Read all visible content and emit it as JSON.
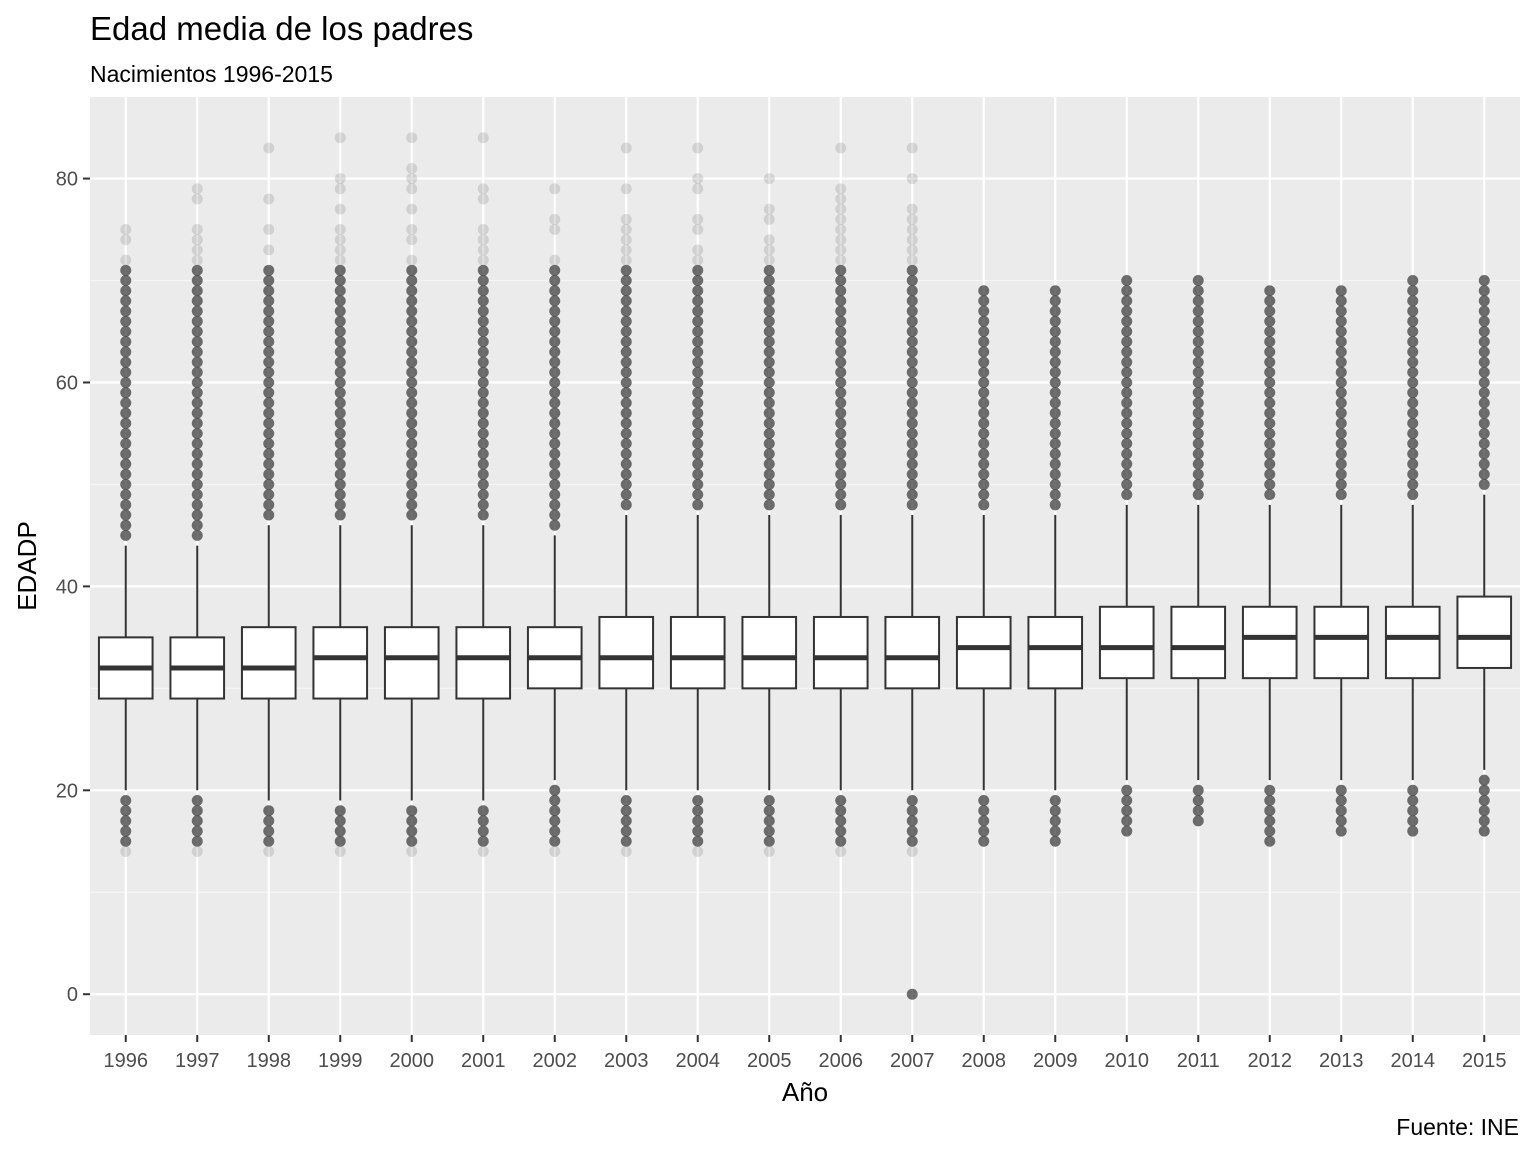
{
  "chart_data": {
    "type": "boxplot",
    "title": "Edad media de los padres",
    "subtitle": "Nacimientos 1996-2015",
    "xlabel": "Año",
    "ylabel": "EDADP",
    "caption": "Fuente: INE",
    "ylim": [
      -4,
      88
    ],
    "yticks": [
      0,
      20,
      40,
      60,
      80
    ],
    "grid": true,
    "categories": [
      "1996",
      "1997",
      "1998",
      "1999",
      "2000",
      "2001",
      "2002",
      "2003",
      "2004",
      "2005",
      "2006",
      "2007",
      "2008",
      "2009",
      "2010",
      "2011",
      "2012",
      "2013",
      "2014",
      "2015"
    ],
    "boxes": [
      {
        "x": "1996",
        "q1": 29,
        "median": 32,
        "q3": 35,
        "whisker_low": 20,
        "whisker_high": 44,
        "outliers_low": [
          14,
          15,
          16,
          17,
          18,
          19
        ],
        "outliers_high": [
          45,
          46,
          47,
          48,
          49,
          50,
          51,
          52,
          53,
          54,
          55,
          56,
          57,
          58,
          59,
          60,
          61,
          62,
          63,
          64,
          65,
          66,
          67,
          68,
          69,
          70,
          71,
          72,
          74,
          75
        ]
      },
      {
        "x": "1997",
        "q1": 29,
        "median": 32,
        "q3": 35,
        "whisker_low": 20,
        "whisker_high": 44,
        "outliers_low": [
          14,
          15,
          16,
          17,
          18,
          19
        ],
        "outliers_high": [
          45,
          46,
          47,
          48,
          49,
          50,
          51,
          52,
          53,
          54,
          55,
          56,
          57,
          58,
          59,
          60,
          61,
          62,
          63,
          64,
          65,
          66,
          67,
          68,
          69,
          70,
          71,
          72,
          73,
          74,
          75,
          78,
          79
        ]
      },
      {
        "x": "1998",
        "q1": 29,
        "median": 32,
        "q3": 36,
        "whisker_low": 19,
        "whisker_high": 46,
        "outliers_low": [
          14,
          15,
          16,
          17,
          18
        ],
        "outliers_high": [
          47,
          48,
          49,
          50,
          51,
          52,
          53,
          54,
          55,
          56,
          57,
          58,
          59,
          60,
          61,
          62,
          63,
          64,
          65,
          66,
          67,
          68,
          69,
          70,
          71,
          73,
          75,
          78,
          83
        ]
      },
      {
        "x": "1999",
        "q1": 29,
        "median": 33,
        "q3": 36,
        "whisker_low": 19,
        "whisker_high": 46,
        "outliers_low": [
          14,
          15,
          16,
          17,
          18
        ],
        "outliers_high": [
          47,
          48,
          49,
          50,
          51,
          52,
          53,
          54,
          55,
          56,
          57,
          58,
          59,
          60,
          61,
          62,
          63,
          64,
          65,
          66,
          67,
          68,
          69,
          70,
          71,
          72,
          73,
          74,
          75,
          77,
          79,
          80,
          84
        ]
      },
      {
        "x": "2000",
        "q1": 29,
        "median": 33,
        "q3": 36,
        "whisker_low": 19,
        "whisker_high": 46,
        "outliers_low": [
          14,
          15,
          16,
          17,
          18
        ],
        "outliers_high": [
          47,
          48,
          49,
          50,
          51,
          52,
          53,
          54,
          55,
          56,
          57,
          58,
          59,
          60,
          61,
          62,
          63,
          64,
          65,
          66,
          67,
          68,
          69,
          70,
          71,
          72,
          74,
          75,
          77,
          79,
          80,
          81,
          84
        ]
      },
      {
        "x": "2001",
        "q1": 29,
        "median": 33,
        "q3": 36,
        "whisker_low": 19,
        "whisker_high": 46,
        "outliers_low": [
          14,
          15,
          16,
          17,
          18
        ],
        "outliers_high": [
          47,
          48,
          49,
          50,
          51,
          52,
          53,
          54,
          55,
          56,
          57,
          58,
          59,
          60,
          61,
          62,
          63,
          64,
          65,
          66,
          67,
          68,
          69,
          70,
          71,
          72,
          73,
          74,
          75,
          78,
          79,
          84
        ]
      },
      {
        "x": "2002",
        "q1": 30,
        "median": 33,
        "q3": 36,
        "whisker_low": 21,
        "whisker_high": 45,
        "outliers_low": [
          14,
          15,
          16,
          17,
          18,
          19,
          20
        ],
        "outliers_high": [
          46,
          47,
          48,
          49,
          50,
          51,
          52,
          53,
          54,
          55,
          56,
          57,
          58,
          59,
          60,
          61,
          62,
          63,
          64,
          65,
          66,
          67,
          68,
          69,
          70,
          71,
          72,
          75,
          76,
          79
        ]
      },
      {
        "x": "2003",
        "q1": 30,
        "median": 33,
        "q3": 37,
        "whisker_low": 20,
        "whisker_high": 47,
        "outliers_low": [
          14,
          15,
          16,
          17,
          18,
          19
        ],
        "outliers_high": [
          48,
          49,
          50,
          51,
          52,
          53,
          54,
          55,
          56,
          57,
          58,
          59,
          60,
          61,
          62,
          63,
          64,
          65,
          66,
          67,
          68,
          69,
          70,
          71,
          72,
          73,
          74,
          75,
          76,
          79,
          83
        ]
      },
      {
        "x": "2004",
        "q1": 30,
        "median": 33,
        "q3": 37,
        "whisker_low": 20,
        "whisker_high": 47,
        "outliers_low": [
          14,
          15,
          16,
          17,
          18,
          19
        ],
        "outliers_high": [
          48,
          49,
          50,
          51,
          52,
          53,
          54,
          55,
          56,
          57,
          58,
          59,
          60,
          61,
          62,
          63,
          64,
          65,
          66,
          67,
          68,
          69,
          70,
          71,
          72,
          73,
          75,
          76,
          79,
          80,
          83
        ]
      },
      {
        "x": "2005",
        "q1": 30,
        "median": 33,
        "q3": 37,
        "whisker_low": 20,
        "whisker_high": 47,
        "outliers_low": [
          14,
          15,
          16,
          17,
          18,
          19
        ],
        "outliers_high": [
          48,
          49,
          50,
          51,
          52,
          53,
          54,
          55,
          56,
          57,
          58,
          59,
          60,
          61,
          62,
          63,
          64,
          65,
          66,
          67,
          68,
          69,
          70,
          71,
          72,
          73,
          74,
          76,
          77,
          80
        ]
      },
      {
        "x": "2006",
        "q1": 30,
        "median": 33,
        "q3": 37,
        "whisker_low": 20,
        "whisker_high": 47,
        "outliers_low": [
          14,
          15,
          16,
          17,
          18,
          19
        ],
        "outliers_high": [
          48,
          49,
          50,
          51,
          52,
          53,
          54,
          55,
          56,
          57,
          58,
          59,
          60,
          61,
          62,
          63,
          64,
          65,
          66,
          67,
          68,
          69,
          70,
          71,
          72,
          73,
          74,
          75,
          76,
          77,
          78,
          79,
          83
        ]
      },
      {
        "x": "2007",
        "q1": 30,
        "median": 33,
        "q3": 37,
        "whisker_low": 20,
        "whisker_high": 47,
        "outliers_low": [
          0,
          14,
          15,
          16,
          17,
          18,
          19
        ],
        "outliers_high": [
          48,
          49,
          50,
          51,
          52,
          53,
          54,
          55,
          56,
          57,
          58,
          59,
          60,
          61,
          62,
          63,
          64,
          65,
          66,
          67,
          68,
          69,
          70,
          71,
          72,
          73,
          74,
          75,
          76,
          77,
          80,
          83
        ]
      },
      {
        "x": "2008",
        "q1": 30,
        "median": 34,
        "q3": 37,
        "whisker_low": 20,
        "whisker_high": 47,
        "outliers_low": [
          15,
          16,
          17,
          18,
          19
        ],
        "outliers_high": [
          48,
          49,
          50,
          51,
          52,
          53,
          54,
          55,
          56,
          57,
          58,
          59,
          60,
          61,
          62,
          63,
          64,
          65,
          66,
          67,
          68,
          69
        ]
      },
      {
        "x": "2009",
        "q1": 30,
        "median": 34,
        "q3": 37,
        "whisker_low": 20,
        "whisker_high": 47,
        "outliers_low": [
          15,
          16,
          17,
          18,
          19
        ],
        "outliers_high": [
          48,
          49,
          50,
          51,
          52,
          53,
          54,
          55,
          56,
          57,
          58,
          59,
          60,
          61,
          62,
          63,
          64,
          65,
          66,
          67,
          68,
          69
        ]
      },
      {
        "x": "2010",
        "q1": 31,
        "median": 34,
        "q3": 38,
        "whisker_low": 21,
        "whisker_high": 48,
        "outliers_low": [
          16,
          17,
          18,
          19,
          20
        ],
        "outliers_high": [
          49,
          50,
          51,
          52,
          53,
          54,
          55,
          56,
          57,
          58,
          59,
          60,
          61,
          62,
          63,
          64,
          65,
          66,
          67,
          68,
          69,
          70
        ]
      },
      {
        "x": "2011",
        "q1": 31,
        "median": 34,
        "q3": 38,
        "whisker_low": 21,
        "whisker_high": 48,
        "outliers_low": [
          17,
          18,
          19,
          20
        ],
        "outliers_high": [
          49,
          50,
          51,
          52,
          53,
          54,
          55,
          56,
          57,
          58,
          59,
          60,
          61,
          62,
          63,
          64,
          65,
          66,
          67,
          68,
          69,
          70
        ]
      },
      {
        "x": "2012",
        "q1": 31,
        "median": 35,
        "q3": 38,
        "whisker_low": 21,
        "whisker_high": 48,
        "outliers_low": [
          15,
          16,
          17,
          18,
          19,
          20
        ],
        "outliers_high": [
          49,
          50,
          51,
          52,
          53,
          54,
          55,
          56,
          57,
          58,
          59,
          60,
          61,
          62,
          63,
          64,
          65,
          66,
          67,
          68,
          69
        ]
      },
      {
        "x": "2013",
        "q1": 31,
        "median": 35,
        "q3": 38,
        "whisker_low": 21,
        "whisker_high": 48,
        "outliers_low": [
          16,
          17,
          18,
          19,
          20
        ],
        "outliers_high": [
          49,
          50,
          51,
          52,
          53,
          54,
          55,
          56,
          57,
          58,
          59,
          60,
          61,
          62,
          63,
          64,
          65,
          66,
          67,
          68,
          69
        ]
      },
      {
        "x": "2014",
        "q1": 31,
        "median": 35,
        "q3": 38,
        "whisker_low": 21,
        "whisker_high": 48,
        "outliers_low": [
          16,
          17,
          18,
          19,
          20
        ],
        "outliers_high": [
          49,
          50,
          51,
          52,
          53,
          54,
          55,
          56,
          57,
          58,
          59,
          60,
          61,
          62,
          63,
          64,
          65,
          66,
          67,
          68,
          69,
          70
        ]
      },
      {
        "x": "2015",
        "q1": 32,
        "median": 35,
        "q3": 39,
        "whisker_low": 22,
        "whisker_high": 49,
        "outliers_low": [
          16,
          17,
          18,
          19,
          20,
          21
        ],
        "outliers_high": [
          50,
          51,
          52,
          53,
          54,
          55,
          56,
          57,
          58,
          59,
          60,
          61,
          62,
          63,
          64,
          65,
          66,
          67,
          68,
          69,
          70
        ]
      }
    ]
  },
  "colors": {
    "panel_background": "#ebebeb",
    "grid_major": "#ffffff",
    "grid_minor": "#f5f5f5",
    "box_fill": "#ffffff",
    "box_line": "#333333",
    "point": "#333333"
  }
}
